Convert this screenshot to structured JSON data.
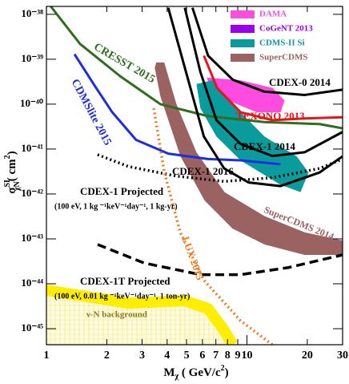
{
  "chart_data": {
    "type": "line",
    "xlog": true,
    "ylog": true,
    "xlim": [
      1,
      30
    ],
    "ylim": [
      4.4e-46,
      1.5e-38
    ],
    "xticks": [
      1,
      2,
      3,
      4,
      5,
      6,
      7,
      8,
      9,
      10,
      20,
      30
    ],
    "yticks": [
      {
        "value": 1e-38,
        "label": "10⁻³⁸"
      },
      {
        "value": 1e-39,
        "label": "10⁻³⁹"
      },
      {
        "value": 1e-40,
        "label": "10⁻⁴⁰"
      },
      {
        "value": 1e-41,
        "label": "10⁻⁴¹"
      },
      {
        "value": 1e-42,
        "label": "10⁻⁴²"
      },
      {
        "value": 1e-43,
        "label": "10⁻⁴³"
      },
      {
        "value": 1e-44,
        "label": "10⁻⁴⁴"
      },
      {
        "value": 1e-45,
        "label": "10⁻⁴⁵"
      }
    ],
    "xlabel": {
      "main": "M",
      "sub": "χ",
      "unit": " ( GeV/c",
      "unit_sup": "2",
      "end": ")"
    },
    "ylabel": {
      "main": "σ",
      "sup": "SI",
      "sub": "χN",
      "unit": "( cm",
      "unit_sup": "2",
      "end": ")"
    },
    "legend_position": "upper right",
    "series": [
      {
        "name": "CRESST 2015",
        "color": "#2d6e1f",
        "style": "solid",
        "x": [
          1,
          1.47,
          2.33,
          3.7,
          6.4,
          12.2,
          23,
          30
        ],
        "values": [
          2e-38,
          2.2e-39,
          4.2e-40,
          1e-40,
          5.4e-41,
          4e-41,
          3.6e-41,
          2.9e-41
        ]
      },
      {
        "name": "CDMSlite 2015",
        "color": "#1c2fe0",
        "style": "solid",
        "x": [
          1.38,
          1.77,
          2.13,
          2.8,
          4.05,
          6.4,
          9.3,
          14.7
        ],
        "values": [
          1.3e-39,
          2.3e-40,
          6.6e-41,
          1.6e-41,
          7.9e-42,
          6e-42,
          5.6e-42,
          4.6e-42
        ]
      },
      {
        "name": "CDEX-0 2014",
        "color": "#000000",
        "style": "solid",
        "x": [
          5.35,
          6.4,
          8.5,
          12.2,
          19.4,
          30
        ],
        "values": [
          1.4e-38,
          1.2e-39,
          3.5e-40,
          1.9e-40,
          1.6e-40,
          2.1e-40
        ]
      },
      {
        "name": "TEXONO 2013",
        "color": "#e8141a",
        "style": "solid",
        "x": [
          6.1,
          7.1,
          9.3,
          13.4,
          19.4,
          30
        ],
        "values": [
          1.2e-39,
          2.3e-40,
          6.6e-41,
          4.4e-41,
          4.8e-41,
          5.1e-41
        ]
      },
      {
        "name": "CDEX-1 2014",
        "color": "#000000",
        "style": "solid",
        "x": [
          4.9,
          5.86,
          7.05,
          9.3,
          13.4,
          19.4,
          30
        ],
        "values": [
          1.4e-38,
          5.2e-40,
          4.4e-41,
          1.3e-41,
          7e-42,
          8.5e-42,
          2.4e-41
        ]
      },
      {
        "name": "CDEX-1 2016",
        "color": "#000000",
        "style": "solid",
        "x": [
          4.05,
          5.1,
          6.1,
          7.7,
          10.2,
          14.7,
          23,
          30
        ],
        "values": [
          1.4e-38,
          3.4e-40,
          1.9e-41,
          3.7e-42,
          1.8e-42,
          1.5e-42,
          3e-42,
          6.9e-42
        ]
      },
      {
        "name": "CDEX-1 Projected",
        "color": "#000000",
        "style": "dotted",
        "x": [
          1.8,
          2.56,
          4.44,
          7.7,
          13.4,
          23,
          30
        ],
        "values": [
          7.5e-42,
          4.1e-42,
          2.5e-42,
          1.9e-42,
          2.3e-42,
          3.7e-42,
          6e-42
        ]
      },
      {
        "name": "CDEX-1T Projected",
        "color": "#000000",
        "style": "dashed",
        "x": [
          1.8,
          3.07,
          5.86,
          9.3,
          16.1,
          30
        ],
        "values": [
          7.5e-44,
          2.9e-44,
          1.6e-44,
          1.6e-44,
          2.3e-44,
          4.4e-44
        ]
      },
      {
        "name": "LUX 2015",
        "color": "#f07a1e",
        "style": "dotted",
        "x": [
          3.43,
          3.87,
          4.65,
          6.1,
          9.3,
          13.4
        ],
        "values": [
          8.1e-41,
          3.1e-42,
          1.4e-43,
          1.2e-44,
          1.5e-45,
          4.4e-46
        ]
      },
      {
        "name": "ν-N background",
        "color": "#ffee00",
        "style": "band",
        "x": [
          1,
          2.56,
          4.9,
          6.4,
          7.6,
          8.5
        ],
        "values": [
          7.2e-45,
          3.7e-45,
          4.2e-45,
          2.8e-45,
          1e-45,
          4.4e-46
        ]
      }
    ],
    "regions": [
      {
        "name": "DAMA",
        "color": "#ff4ce0",
        "x": [
          6.31,
          9.29,
          13.43,
          15.42,
          14.72,
          11.17,
          8.09,
          6.55
        ],
        "values": [
          3.9e-40,
          3.4e-40,
          2.3e-40,
          1.2e-40,
          6.6e-41,
          6.6e-41,
          1.2e-40,
          2.3e-40
        ]
      },
      {
        "name": "CoGeNT 2013",
        "color": "#9a00ee",
        "x": [],
        "values": []
      },
      {
        "name": "CDMS-II Si",
        "color": "#0a9c9c",
        "x": [
          5.6,
          6.73,
          8.47,
          12.25,
          17.7,
          20.3,
          18.5,
          14.7,
          9.29,
          7.05,
          5.86
        ],
        "values": [
          2.8e-40,
          3.4e-40,
          1e-40,
          1.9e-41,
          6.9e-42,
          3e-42,
          1.1e-42,
          1.6e-42,
          5.6e-42,
          1.9e-41,
          8.1e-41
        ]
      },
      {
        "name": "SuperCDMS",
        "color": "#9b6262",
        "x": [
          3.53,
          3.87,
          4.45,
          5.6,
          7.73,
          12.25,
          19.4,
          30,
          30,
          19.4,
          12.25,
          8.47,
          6.14,
          4.66,
          3.7,
          3.47
        ],
        "values": [
          8.5e-40,
          8.5e-40,
          1e-40,
          8.5e-42,
          1.1e-42,
          3.2e-43,
          1.4e-43,
          9.2e-44,
          4.4e-44,
          4.4e-44,
          7.5e-44,
          1.7e-43,
          7.2e-43,
          6.9e-42,
          1.5e-40,
          6.4e-40
        ]
      }
    ],
    "annotations": [
      "SuperCDMS 2014",
      "(100 eV, 1 kg ⁻¹keV⁻¹day⁻¹, 1 kg-yr)",
      "(100 eV, 0.01 kg ⁻¹keV⁻¹day⁻¹, 1 ton-yr)"
    ]
  }
}
